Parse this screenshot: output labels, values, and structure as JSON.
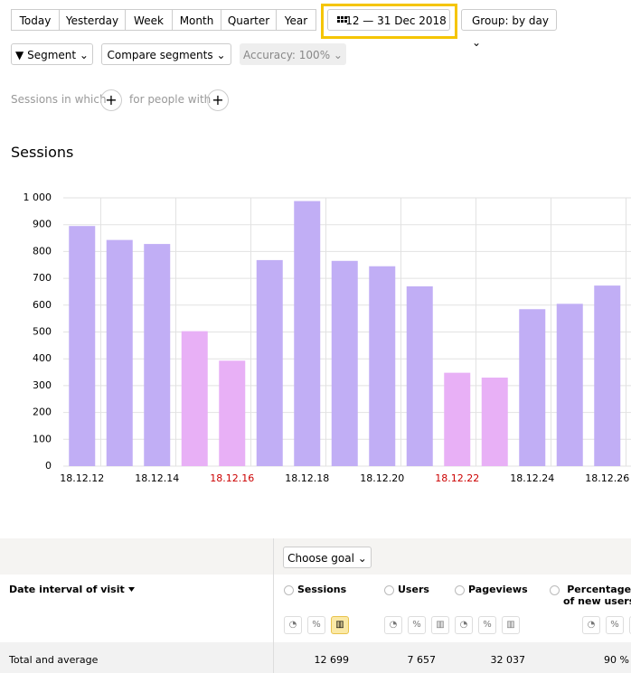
{
  "toolbar": {
    "periods": [
      "Today",
      "Yesterday",
      "Week",
      "Month",
      "Quarter",
      "Year"
    ],
    "date_range": "12 — 31 Dec 2018",
    "group": "Group: by day",
    "segment": "Segment",
    "compare": "Compare segments",
    "accuracy": "Accuracy: 100%"
  },
  "filters": {
    "sessions_in_which": "Sessions in which",
    "for_people_with": "for people with"
  },
  "chart_data": {
    "type": "bar",
    "title": "Sessions",
    "categories": [
      "18.12.12",
      null,
      "18.12.14",
      null,
      "18.12.16",
      null,
      "18.12.18",
      null,
      "18.12.20",
      null,
      "18.12.22",
      null,
      "18.12.24",
      null,
      "18.12.26"
    ],
    "values": [
      895,
      843,
      828,
      503,
      393,
      768,
      988,
      765,
      745,
      670,
      348,
      330,
      585,
      605,
      673
    ],
    "colors": [
      "#c1aef5",
      "#c1aef5",
      "#c1aef5",
      "#e8b0f6",
      "#e8b0f6",
      "#c1aef5",
      "#c1aef5",
      "#c1aef5",
      "#c1aef5",
      "#c1aef5",
      "#e8b0f6",
      "#e8b0f6",
      "#c1aef5",
      "#c1aef5",
      "#c1aef5"
    ],
    "label_colors": [
      "#000000",
      "#000000",
      "#000000",
      "#000000",
      "#cc0000",
      "#000000",
      "#000000",
      "#000000",
      "#000000",
      "#000000",
      "#cc0000",
      "#000000",
      "#000000",
      "#000000",
      "#000000"
    ],
    "ylim": [
      0,
      1000
    ],
    "yticks": [
      0,
      100,
      200,
      300,
      400,
      500,
      600,
      700,
      800,
      900,
      {
        "value": 1000,
        "label": "1 000"
      }
    ],
    "grid": true
  },
  "table": {
    "choose_goal": "Choose goal",
    "dimension": "Date interval of visit",
    "columns": [
      "Sessions",
      "Users",
      "Pageviews",
      "Percentage\nof new users"
    ],
    "total_label": "Total and average",
    "totals": [
      "12 699",
      "7 657",
      "32 037",
      "90 %"
    ]
  }
}
